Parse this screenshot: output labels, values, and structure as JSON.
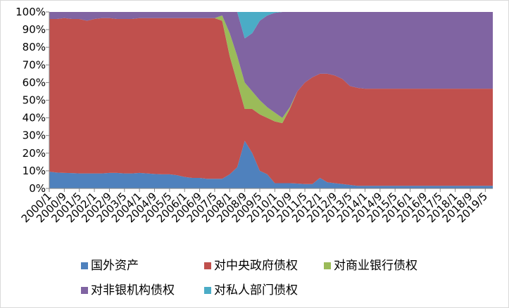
{
  "chart_data": {
    "type": "stacked-area",
    "categories": [
      "2000/1",
      null,
      "2000/9",
      null,
      "2001/5",
      null,
      "2002/1",
      null,
      "2002/9",
      null,
      "2003/5",
      null,
      "2004/1",
      null,
      "2004/9",
      null,
      "2005/5",
      null,
      "2006/1",
      null,
      "2006/9",
      null,
      "2007/5",
      null,
      "2008/1",
      null,
      "2008/9",
      null,
      "2009/5",
      null,
      "2010/1",
      null,
      "2010/9",
      null,
      "2011/5",
      null,
      "2012/1",
      null,
      "2012/9",
      null,
      "2013/5",
      null,
      "2014/1",
      null,
      "2014/9",
      null,
      "2015/5",
      null,
      "2016/1",
      null,
      "2016/9",
      null,
      "2017/5",
      null,
      "2018/1",
      null,
      "2018/9",
      null,
      "2019/5",
      null
    ],
    "series": [
      {
        "name": "国外资产",
        "color": "#4f81bd",
        "values": [
          9.5,
          9,
          8.8,
          8.7,
          8.5,
          8.5,
          8.5,
          8.5,
          8.8,
          8.8,
          8.5,
          8.5,
          8.8,
          8.5,
          8.2,
          8,
          8,
          7.5,
          6.5,
          6,
          6,
          5.5,
          5.5,
          5.5,
          8,
          12,
          27,
          20,
          10,
          8,
          3,
          3,
          3,
          2.8,
          2.5,
          2.5,
          6,
          3.5,
          3,
          2.5,
          2,
          1.5,
          1.5,
          1.5,
          1.5,
          1.5,
          1.5,
          1.5,
          1.5,
          1.5,
          1.5,
          1.5,
          1.5,
          1.5,
          1.5,
          1.5,
          1.5,
          1.5,
          1.5,
          1.5
        ]
      },
      {
        "name": "对中央政府债权",
        "color": "#c0504d",
        "values": [
          86.5,
          87,
          87.7,
          87.3,
          87.5,
          86.5,
          87.5,
          88,
          87.7,
          87.2,
          87.5,
          87.5,
          87.7,
          88,
          88.3,
          88.5,
          88.5,
          89,
          90,
          90.5,
          90.5,
          91,
          91,
          89.5,
          67,
          48,
          18,
          25,
          32,
          32,
          35,
          34,
          42,
          52.2,
          57.5,
          60.5,
          59,
          61.5,
          61,
          59.5,
          56,
          55.5,
          55,
          55,
          55,
          55,
          55,
          55,
          55,
          55,
          55,
          55,
          55,
          55,
          55,
          55,
          55,
          55,
          55,
          55
        ]
      },
      {
        "name": "对商业银行债权",
        "color": "#9bbb59",
        "values": [
          0,
          0,
          0,
          0,
          0,
          0,
          0,
          0,
          0,
          0,
          0,
          0,
          0,
          0,
          0,
          0,
          0,
          0,
          0,
          0,
          0,
          0,
          0,
          3,
          13,
          15,
          15,
          10,
          8,
          6,
          5,
          3,
          1,
          0,
          0,
          0,
          0,
          0,
          0,
          0,
          0,
          0,
          0,
          0,
          0,
          0,
          0,
          0,
          0,
          0,
          0,
          0,
          0,
          0,
          0,
          0,
          0,
          0,
          0,
          0
        ]
      },
      {
        "name": "对非银机构债权",
        "color": "#8064a2",
        "values": [
          4,
          4,
          3.5,
          4,
          4,
          5,
          4,
          3.5,
          3.5,
          4,
          4,
          4,
          3.5,
          3.5,
          3.5,
          3.5,
          3.5,
          3.5,
          3.5,
          3.5,
          3.5,
          3.5,
          3.5,
          2,
          12,
          25,
          25,
          33,
          45,
          52,
          56.5,
          60,
          54,
          45,
          40,
          37,
          35,
          35,
          36,
          38,
          42,
          43,
          43.5,
          43.5,
          43.5,
          43.5,
          43.5,
          43.5,
          43.5,
          43.5,
          43.5,
          43.5,
          43.5,
          43.5,
          43.5,
          43.5,
          43.5,
          43.5,
          43.5,
          43.5
        ]
      },
      {
        "name": "对私人部门债权",
        "color": "#4bacc6",
        "values": [
          0,
          0,
          0,
          0,
          0,
          0,
          0,
          0,
          0,
          0,
          0,
          0,
          0,
          0,
          0,
          0,
          0,
          0,
          0,
          0,
          0,
          0,
          0,
          0,
          0,
          0,
          15,
          12,
          5,
          2,
          0.5,
          0,
          0,
          0,
          0,
          0,
          0,
          0,
          0,
          0,
          0,
          0,
          0,
          0,
          0,
          0,
          0,
          0,
          0,
          0,
          0,
          0,
          0,
          0,
          0,
          0,
          0,
          0,
          0,
          0
        ]
      }
    ],
    "ylim": [
      0,
      100
    ],
    "yticks": [
      {
        "value": 0,
        "label": "0%"
      },
      {
        "value": 10,
        "label": "10%"
      },
      {
        "value": 20,
        "label": "20%"
      },
      {
        "value": 30,
        "label": "30%"
      },
      {
        "value": 40,
        "label": "40%"
      },
      {
        "value": 50,
        "label": "50%"
      },
      {
        "value": 60,
        "label": "60%"
      },
      {
        "value": 70,
        "label": "70%"
      },
      {
        "value": 80,
        "label": "80%"
      },
      {
        "value": 90,
        "label": "90%"
      },
      {
        "value": 100,
        "label": "100%"
      }
    ]
  }
}
